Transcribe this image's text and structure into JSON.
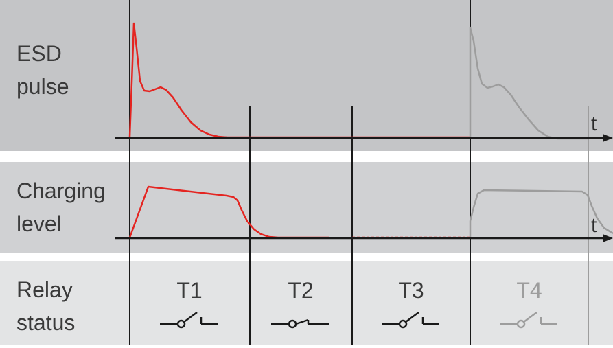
{
  "bands": {
    "esd": {
      "label_line1": "ESD",
      "label_line2": "pulse"
    },
    "charging": {
      "label_line1": "Charging",
      "label_line2": "level"
    },
    "relay": {
      "label_line1": "Relay",
      "label_line2": "status"
    }
  },
  "axis": {
    "time_label": "t"
  },
  "phases": [
    {
      "label": "T1",
      "switch": "open"
    },
    {
      "label": "T2",
      "switch": "closed"
    },
    {
      "label": "T3",
      "switch": "open"
    },
    {
      "label": "T4",
      "switch": "open",
      "faded": true
    }
  ],
  "colors": {
    "band_dark": "#c4c5c7",
    "band_mid": "#d0d1d3",
    "band_light": "#e3e4e5",
    "pulse": "#e42521",
    "faded": "#9d9d9d",
    "line": "#1a1a1a",
    "text": "#3a3a3a"
  }
}
